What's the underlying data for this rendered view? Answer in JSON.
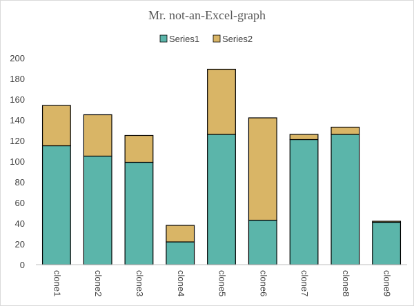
{
  "chart_data": {
    "type": "bar",
    "stacked": true,
    "title": "Mr. not-an-Excel-graph",
    "xlabel": "",
    "ylabel": "",
    "categories": [
      "clone1",
      "clone2",
      "clone3",
      "clone4",
      "clone5",
      "clone6",
      "clone7",
      "clone8",
      "clone9"
    ],
    "series": [
      {
        "name": "Series1",
        "color": "#5bb5aa",
        "values": [
          115,
          105,
          99,
          22,
          126,
          43,
          121,
          126,
          41
        ]
      },
      {
        "name": "Series2",
        "color": "#d9b566",
        "values": [
          39,
          40,
          26,
          16,
          63,
          99,
          5,
          7,
          1
        ]
      }
    ],
    "ylim": [
      0,
      200
    ],
    "yticks": [
      0,
      20,
      40,
      60,
      80,
      100,
      120,
      140,
      160,
      180,
      200
    ],
    "grid": false,
    "legend": "top-center",
    "bar_outline_color": "#000000"
  }
}
